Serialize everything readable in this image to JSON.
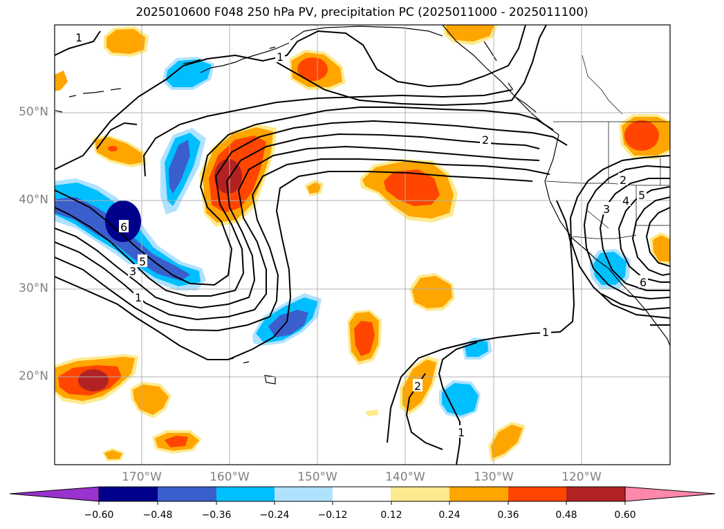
{
  "title": "2025010600 F048 250 hPa PV, precipitation PC (2025011000 - 2025011100)",
  "lat_labels": [
    "50°N",
    "40°N",
    "30°N",
    "20°N"
  ],
  "lon_labels": [
    "170°W",
    "160°W",
    "150°W",
    "140°W",
    "130°W",
    "120°W"
  ],
  "contour_labels": [
    "1",
    "1",
    "2",
    "1",
    "2",
    "2",
    "3",
    "4",
    "5",
    "1",
    "1",
    "3",
    "5",
    "6",
    "6"
  ],
  "colorbar": {
    "colors": [
      "#9a32cd",
      "#00008b",
      "#3a5fcd",
      "#00bfff",
      "#b0e2ff",
      "#ffffff",
      "#fdea8e",
      "#ffa500",
      "#ff4500",
      "#b22222",
      "#ff88aa"
    ],
    "tick_labels": [
      "−0.60",
      "−0.48",
      "−0.36",
      "−0.24",
      "−0.12",
      "0.12",
      "0.24",
      "0.36",
      "0.48",
      "0.60"
    ]
  }
}
